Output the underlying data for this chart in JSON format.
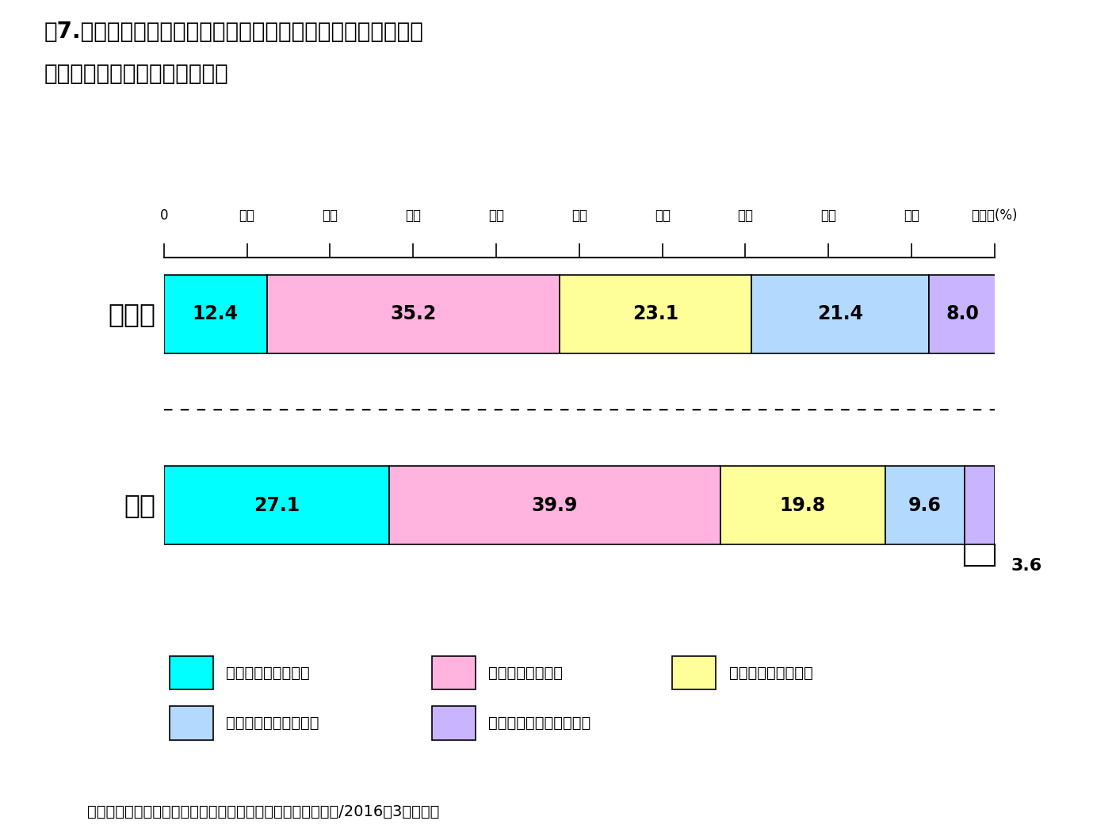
{
  "title_line1": "図7.　ダブルケア（育児を行いかつ介護を行っている）の人の",
  "title_line2": "　　　子育て及び介護の負担感",
  "categories": [
    "子育て",
    "介護"
  ],
  "values_row1": [
    12.4,
    35.2,
    23.1,
    21.4,
    8.0
  ],
  "values_row2": [
    27.1,
    39.9,
    19.8,
    9.6,
    3.6
  ],
  "colors": [
    "#00FFFF",
    "#FFB3DE",
    "#FFFF99",
    "#B3D9FF",
    "#C8B4FF"
  ],
  "bar_edge_color": "#000000",
  "x_ticks": [
    0,
    10,
    20,
    30,
    40,
    50,
    60,
    70,
    80,
    90,
    100
  ],
  "x_tick_labels": [
    "0",
    "１０",
    "２０",
    "３０",
    "４０",
    "５０",
    "６０",
    "７０",
    "８０",
    "９０",
    "１００(%)"
  ],
  "legend_labels": [
    "非常に負担を感じる",
    "やや負担を感じる",
    "どちらともいえない",
    "あまり負担を感じない",
    "まったく負担を感じない"
  ],
  "footnote": "育児と介護のダブルケアの実態に関する調査報告書（内閣府/2016年3月発表）",
  "bg_color": "#FFFFFF"
}
